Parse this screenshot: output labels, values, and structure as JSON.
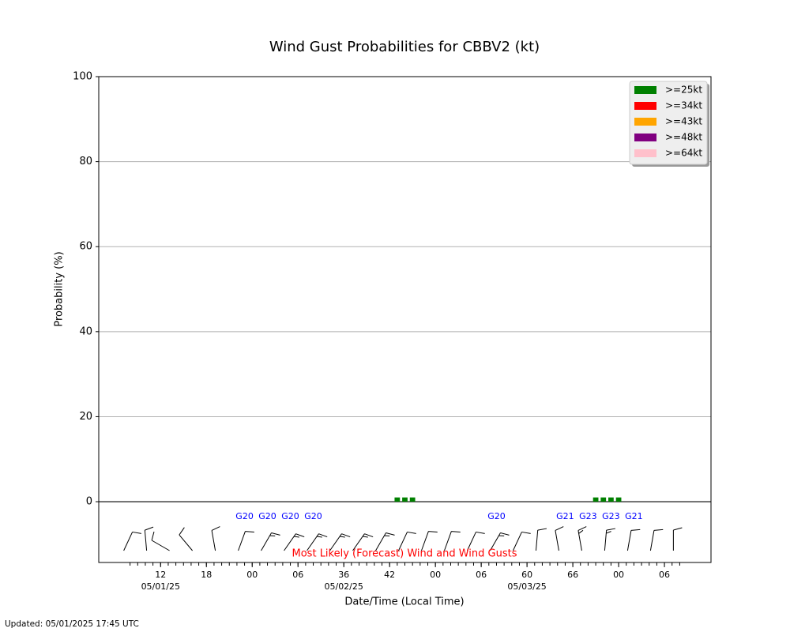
{
  "chart_data": {
    "type": "bar",
    "title": "Wind Gust Probabilities for CBBV2 (kt)",
    "ylabel": "Probability (%)",
    "xlabel": "Date/Time (Local Time)",
    "annotation": "Most Likely (Forecast) Wind and Wind Gusts",
    "footer": "Updated: 05/01/2025 17:45 UTC",
    "xlim": [
      3.9,
      84.1
    ],
    "ylim": [
      -14.3,
      100
    ],
    "yticks": [
      0,
      20,
      40,
      60,
      80,
      100
    ],
    "grid": true,
    "legend": "upper right",
    "xticks": [
      12,
      18,
      {
        "value": 24,
        "label": "00"
      },
      {
        "value": 30,
        "label": "06"
      },
      36,
      42,
      {
        "value": 48,
        "label": "00"
      },
      {
        "value": 54,
        "label": "06"
      },
      60,
      66,
      {
        "value": 72,
        "label": "00"
      },
      {
        "value": 78,
        "label": "06"
      }
    ],
    "date_ticks": [
      {
        "value": 12,
        "label": "05/01/25"
      },
      {
        "value": 36,
        "label": "05/02/25"
      },
      {
        "value": 60,
        "label": "05/03/25"
      }
    ],
    "xminorticks": [
      8,
      9,
      10,
      11,
      12,
      13,
      14,
      15,
      16,
      17,
      18,
      19,
      20,
      21,
      22,
      23,
      24,
      25,
      26,
      27,
      28,
      29,
      30,
      31,
      32,
      33,
      34,
      35,
      36,
      37,
      38,
      39,
      40,
      41,
      42,
      43,
      44,
      45,
      46,
      47,
      48,
      49,
      50,
      51,
      52,
      53,
      54,
      55,
      56,
      57,
      58,
      59,
      60,
      61,
      62,
      63,
      64,
      65,
      66,
      67,
      68,
      69,
      70,
      71,
      72,
      73,
      74,
      75,
      76,
      77,
      78,
      79,
      80
    ],
    "x": [
      43,
      44,
      45,
      69,
      70,
      71,
      72
    ],
    "series": [
      {
        "name": ">=25kt",
        "color": "#008000",
        "values": [
          1,
          1,
          1,
          1,
          1,
          1,
          1
        ]
      },
      {
        "name": ">=34kt",
        "color": "#ff0000",
        "values": [
          0,
          0,
          0,
          0,
          0,
          0,
          0
        ]
      },
      {
        "name": ">=43kt",
        "color": "#ffa500",
        "values": [
          0,
          0,
          0,
          0,
          0,
          0,
          0
        ]
      },
      {
        "name": ">=48kt",
        "color": "#800080",
        "values": [
          0,
          0,
          0,
          0,
          0,
          0,
          0
        ]
      },
      {
        "name": ">=64kt",
        "color": "#ffc0cb",
        "values": [
          0,
          0,
          0,
          0,
          0,
          0,
          0
        ]
      }
    ],
    "gusts": {
      "x": [
        23,
        26,
        29,
        32,
        56,
        65,
        68,
        71,
        74
      ],
      "values": [
        20,
        20,
        20,
        20,
        20,
        21,
        23,
        23,
        21
      ],
      "value_labels": [
        "G20",
        "G20",
        "G20",
        "G20",
        "G20",
        "G21",
        "G23",
        "G23",
        "G21"
      ],
      "color": "#0000ff"
    },
    "wind": {
      "x": [
        8,
        11,
        14,
        17,
        20,
        23,
        26,
        29,
        32,
        35,
        38,
        41,
        44,
        47,
        50,
        53,
        56,
        59,
        62,
        65,
        68,
        71,
        74,
        77,
        80
      ],
      "direction": [
        25,
        355,
        300,
        320,
        350,
        20,
        30,
        35,
        35,
        35,
        35,
        30,
        25,
        20,
        20,
        25,
        30,
        25,
        5,
        350,
        350,
        5,
        10,
        10,
        0
      ],
      "speed": [
        10,
        10,
        10,
        10,
        10,
        10,
        15,
        15,
        15,
        15,
        15,
        15,
        10,
        10,
        10,
        10,
        15,
        10,
        10,
        10,
        15,
        15,
        10,
        10,
        10
      ]
    }
  }
}
